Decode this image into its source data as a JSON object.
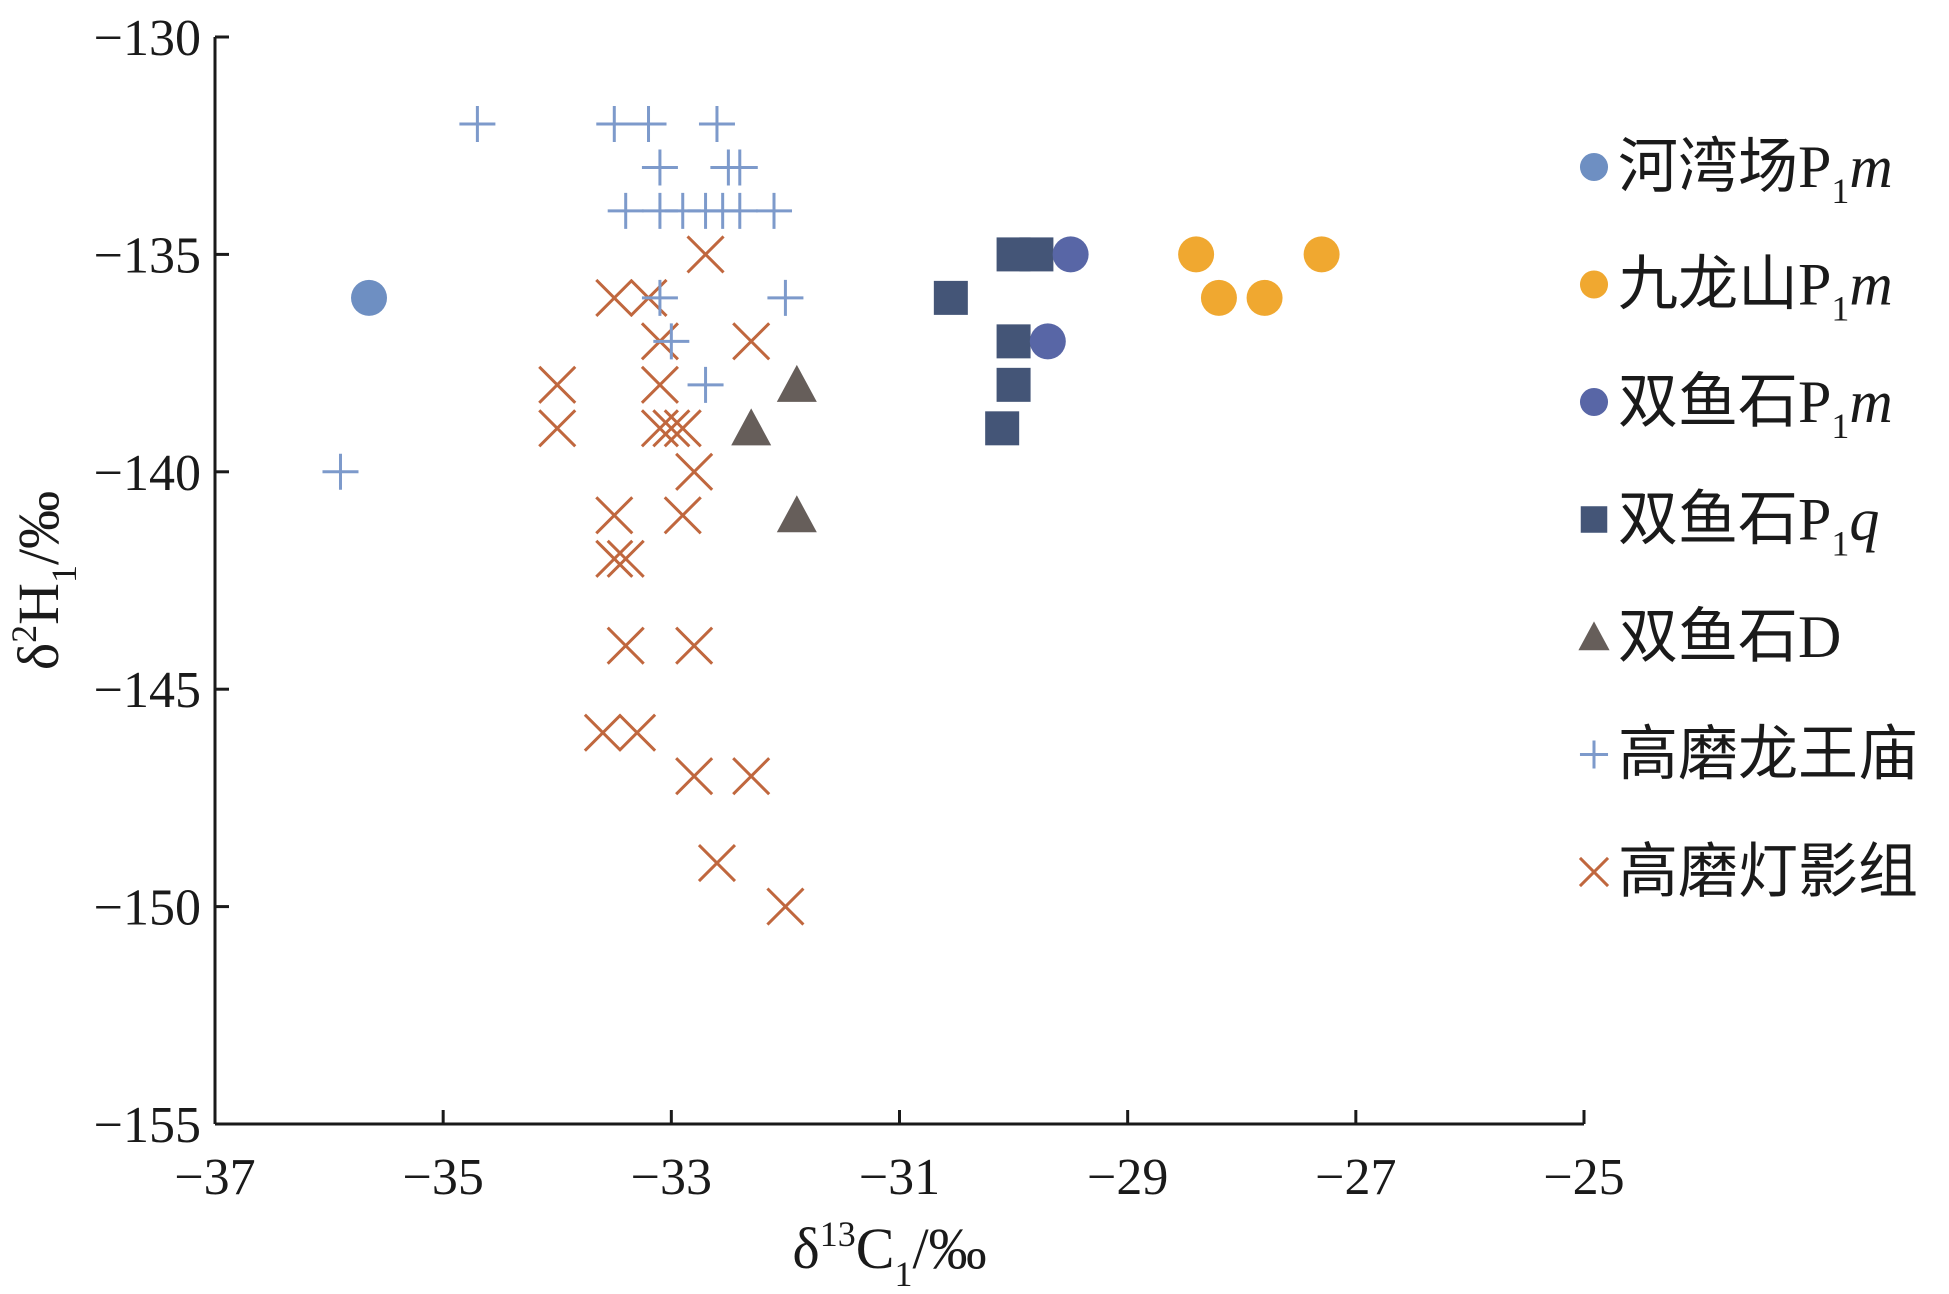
{
  "chart_data": {
    "type": "scatter",
    "title": "",
    "xlabel": {
      "base": "δ",
      "sup": "13",
      "main": "C",
      "sub": "1",
      "unit": "/‰"
    },
    "ylabel": {
      "base": "δ",
      "sup": "2",
      "main": "H",
      "sub": "1",
      "unit": "/‰"
    },
    "xlim": [
      -37,
      -25
    ],
    "ylim": [
      -155,
      -130
    ],
    "xticks": [
      -37,
      -35,
      -33,
      -31,
      -29,
      -27,
      -25
    ],
    "yticks": [
      -130,
      -135,
      -140,
      -145,
      -150,
      -155
    ],
    "xtick_labels": [
      "−37",
      "−35",
      "−33",
      "−31",
      "−29",
      "−27",
      "−25"
    ],
    "ytick_labels": [
      "−130",
      "−135",
      "−140",
      "−145",
      "−150",
      "−155"
    ],
    "grid": false,
    "legend_position": "right",
    "series": [
      {
        "name": "河湾场P1m",
        "label": {
          "prefix": "河湾场P",
          "sub": "1",
          "italic": "m"
        },
        "marker": "circle",
        "color": "#6e8fc2",
        "points": [
          [
            -35.65,
            -136
          ]
        ]
      },
      {
        "name": "九龙山P1m",
        "label": {
          "prefix": "九龙山P",
          "sub": "1",
          "italic": "m"
        },
        "marker": "circle",
        "color": "#f0a830",
        "points": [
          [
            -28.4,
            -135
          ],
          [
            -27.3,
            -135
          ],
          [
            -28.2,
            -136
          ],
          [
            -27.8,
            -136
          ]
        ]
      },
      {
        "name": "双鱼石P1m",
        "label": {
          "prefix": "双鱼石P",
          "sub": "1",
          "italic": "m"
        },
        "marker": "circle",
        "color": "#5866a6",
        "points": [
          [
            -29.5,
            -135
          ],
          [
            -29.7,
            -137
          ]
        ]
      },
      {
        "name": "双鱼石P1q",
        "label": {
          "prefix": "双鱼石P",
          "sub": "1",
          "italic": "q"
        },
        "marker": "square",
        "color": "#445577",
        "points": [
          [
            -30.0,
            -135
          ],
          [
            -29.8,
            -135
          ],
          [
            -30.55,
            -136
          ],
          [
            -30.0,
            -137
          ],
          [
            -30.0,
            -138
          ],
          [
            -30.1,
            -139
          ]
        ]
      },
      {
        "name": "双鱼石D",
        "label": {
          "prefix": "双鱼石D",
          "sub": "",
          "italic": ""
        },
        "marker": "triangle",
        "color": "#665e5a",
        "points": [
          [
            -31.9,
            -138
          ],
          [
            -32.3,
            -139
          ],
          [
            -31.9,
            -141
          ]
        ]
      },
      {
        "name": "高磨龙王庙",
        "label": {
          "prefix": "高磨龙王庙",
          "sub": "",
          "italic": ""
        },
        "marker": "plus",
        "color": "#7d9acb",
        "points": [
          [
            -34.7,
            -132
          ],
          [
            -33.5,
            -132
          ],
          [
            -33.2,
            -132
          ],
          [
            -32.6,
            -132
          ],
          [
            -33.1,
            -133
          ],
          [
            -32.5,
            -133
          ],
          [
            -32.4,
            -133
          ],
          [
            -33.4,
            -134
          ],
          [
            -33.1,
            -134
          ],
          [
            -32.9,
            -134
          ],
          [
            -32.7,
            -134
          ],
          [
            -32.55,
            -134
          ],
          [
            -32.4,
            -134
          ],
          [
            -32.1,
            -134
          ],
          [
            -33.1,
            -136
          ],
          [
            -32.0,
            -136
          ],
          [
            -33.0,
            -137
          ],
          [
            -32.7,
            -138
          ],
          [
            -35.9,
            -140
          ]
        ]
      },
      {
        "name": "高磨灯影组",
        "label": {
          "prefix": "高磨灯影组",
          "sub": "",
          "italic": ""
        },
        "marker": "x",
        "color": "#c0673e",
        "points": [
          [
            -32.7,
            -135
          ],
          [
            -33.5,
            -136
          ],
          [
            -33.2,
            -136
          ],
          [
            -33.1,
            -137
          ],
          [
            -32.3,
            -137
          ],
          [
            -34.0,
            -138
          ],
          [
            -33.1,
            -138
          ],
          [
            -34.0,
            -139
          ],
          [
            -33.1,
            -139
          ],
          [
            -33.0,
            -139
          ],
          [
            -32.9,
            -139
          ],
          [
            -32.8,
            -140
          ],
          [
            -33.5,
            -141
          ],
          [
            -32.9,
            -141
          ],
          [
            -33.5,
            -142
          ],
          [
            -33.4,
            -142
          ],
          [
            -33.4,
            -144
          ],
          [
            -32.8,
            -144
          ],
          [
            -33.6,
            -146
          ],
          [
            -33.3,
            -146
          ],
          [
            -32.8,
            -147
          ],
          [
            -32.3,
            -147
          ],
          [
            -32.6,
            -149
          ],
          [
            -32.0,
            -150
          ]
        ]
      }
    ]
  }
}
